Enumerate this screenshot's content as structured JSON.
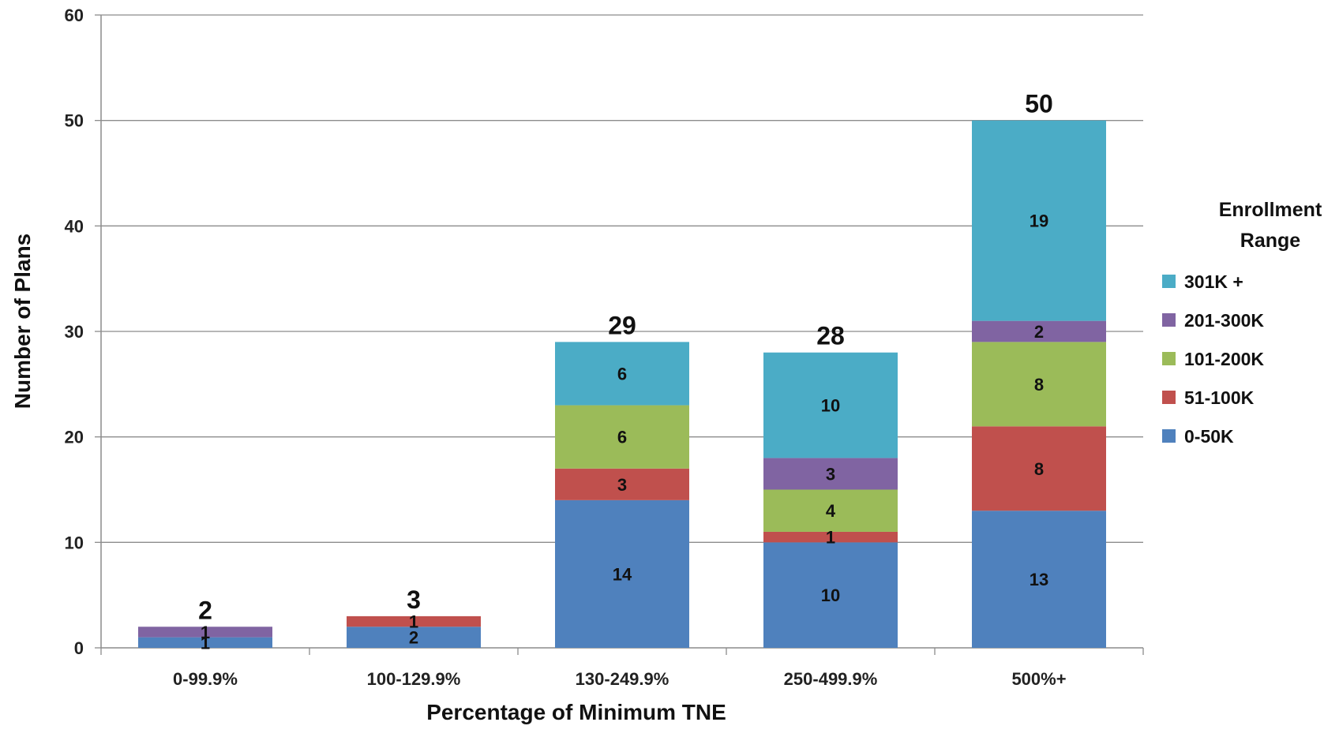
{
  "chart_data": {
    "type": "bar",
    "stacked": true,
    "xlabel": "Percentage of Minimum TNE",
    "ylabel": "Number of Plans",
    "ylim": [
      0,
      60
    ],
    "yticks": [
      0,
      10,
      20,
      30,
      40,
      50,
      60
    ],
    "grid": true,
    "categories": [
      "0-99.9%",
      "100-129.9%",
      "130-249.9%",
      "250-499.9%",
      "500%+"
    ],
    "totals": [
      2,
      3,
      29,
      28,
      50
    ],
    "legend": {
      "title": "Enrollment Range",
      "placement": "right"
    },
    "series": [
      {
        "name": "0-50K",
        "color": "#4F81BD",
        "values": [
          1,
          2,
          14,
          10,
          13
        ]
      },
      {
        "name": "51-100K",
        "color": "#C0504D",
        "values": [
          0,
          1,
          3,
          1,
          8
        ]
      },
      {
        "name": "101-200K",
        "color": "#9BBB59",
        "values": [
          0,
          0,
          6,
          4,
          8
        ]
      },
      {
        "name": "201-300K",
        "color": "#8064A2",
        "values": [
          1,
          0,
          0,
          3,
          2
        ]
      },
      {
        "name": "301K +",
        "color": "#4BACC6",
        "values": [
          0,
          0,
          6,
          10,
          19
        ]
      }
    ],
    "legend_order": [
      "301K +",
      "201-300K",
      "101-200K",
      "51-100K",
      "0-50K"
    ]
  }
}
